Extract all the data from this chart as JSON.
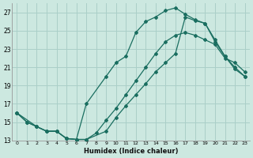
{
  "xlabel": "Humidex (Indice chaleur)",
  "bg_color": "#cce8e0",
  "grid_color": "#aacfc8",
  "line_color": "#1a6e60",
  "xlim": [
    -0.5,
    23.5
  ],
  "ylim": [
    13,
    28
  ],
  "xticks": [
    0,
    1,
    2,
    3,
    4,
    5,
    6,
    7,
    8,
    9,
    10,
    11,
    12,
    13,
    14,
    15,
    16,
    17,
    18,
    19,
    20,
    21,
    22,
    23
  ],
  "yticks": [
    13,
    15,
    17,
    19,
    21,
    23,
    25,
    27
  ],
  "line1_x": [
    0,
    1,
    2,
    3,
    4,
    5,
    6,
    7,
    9,
    10,
    11,
    12,
    13,
    14,
    15,
    16,
    17,
    18,
    19,
    20,
    21,
    22,
    23
  ],
  "line1_y": [
    16,
    15,
    14.5,
    14.0,
    14.0,
    13.2,
    13.1,
    13.1,
    14.0,
    15.5,
    16.8,
    18.0,
    19.2,
    20.5,
    21.5,
    22.5,
    26.5,
    26.1,
    25.8,
    23.8,
    22.2,
    20.8,
    20.0
  ],
  "line2_x": [
    0,
    2,
    3,
    4,
    5,
    6,
    7,
    9,
    10,
    11,
    12,
    13,
    14,
    15,
    16,
    17,
    18,
    19,
    20,
    21,
    22,
    23
  ],
  "line2_y": [
    16,
    14.5,
    14.0,
    14.0,
    13.2,
    13.1,
    17.0,
    20.0,
    21.5,
    22.2,
    24.8,
    26.0,
    26.5,
    27.2,
    27.5,
    26.8,
    26.2,
    25.8,
    24.0,
    22.2,
    21.0,
    20.0
  ],
  "line3_x": [
    0,
    1,
    2,
    3,
    4,
    5,
    6,
    7,
    8,
    9,
    10,
    11,
    12,
    13,
    14,
    15,
    16,
    17,
    18,
    19,
    20,
    21,
    22,
    23
  ],
  "line3_y": [
    16,
    15,
    14.5,
    14.0,
    14.0,
    13.2,
    13.1,
    13.1,
    13.8,
    15.2,
    16.5,
    18.0,
    19.5,
    21.0,
    22.5,
    23.8,
    24.5,
    24.8,
    24.5,
    24.0,
    23.5,
    22.0,
    21.5,
    20.5
  ]
}
